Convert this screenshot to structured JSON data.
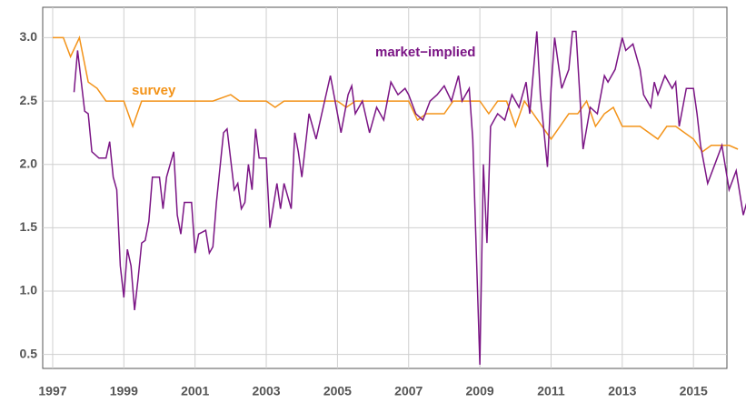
{
  "chart_data": {
    "type": "line",
    "xlim": [
      1996.72,
      2015.94
    ],
    "xticks": [
      1997,
      1999,
      2001,
      2003,
      2005,
      2007,
      2009,
      2011,
      2013,
      2015
    ],
    "ylim": [
      0.39,
      3.24
    ],
    "yticks": [
      {
        "value": 0.5,
        "label": "0.5"
      },
      {
        "value": 1.0,
        "label": "1.0"
      },
      {
        "value": 1.5,
        "label": "1.5"
      },
      {
        "value": 2.0,
        "label": "2.0"
      },
      {
        "value": 2.5,
        "label": "2.5"
      },
      {
        "value": 3.0,
        "label": "3.0"
      }
    ],
    "grid": true,
    "series": [
      {
        "name": "survey",
        "color": "#f39319",
        "x": [
          1997.0,
          1997.3,
          1997.5,
          1997.75,
          1998.0,
          1998.25,
          1998.5,
          1999.0,
          1999.25,
          1999.5,
          2001.5,
          2002.0,
          2002.25,
          2003.0,
          2003.25,
          2003.5,
          2005.0,
          2005.25,
          2005.5,
          2007.0,
          2007.25,
          2007.5,
          2008.0,
          2008.25,
          2009.0,
          2009.25,
          2009.5,
          2009.75,
          2010.0,
          2010.25,
          2010.5,
          2011.0,
          2011.5,
          2011.75,
          2012.0,
          2012.25,
          2012.5,
          2012.75,
          2013.0,
          2013.5,
          2014.0,
          2014.25,
          2014.5,
          2015.0,
          2015.25,
          2015.5,
          2015.75,
          2016.0,
          2016.25
        ],
        "values": [
          3.0,
          3.0,
          2.85,
          3.0,
          2.65,
          2.6,
          2.5,
          2.5,
          2.3,
          2.5,
          2.5,
          2.55,
          2.5,
          2.5,
          2.45,
          2.5,
          2.5,
          2.45,
          2.5,
          2.5,
          2.35,
          2.4,
          2.4,
          2.5,
          2.5,
          2.4,
          2.5,
          2.5,
          2.3,
          2.5,
          2.4,
          2.2,
          2.4,
          2.4,
          2.5,
          2.3,
          2.4,
          2.45,
          2.3,
          2.3,
          2.2,
          2.3,
          2.3,
          2.2,
          2.1,
          2.15,
          2.15,
          2.15,
          2.12
        ]
      },
      {
        "name": "market−implied",
        "color": "#7b1585",
        "x": [
          1997.6,
          1997.7,
          1997.9,
          1998.0,
          1998.1,
          1998.3,
          1998.5,
          1998.6,
          1998.7,
          1998.8,
          1998.9,
          1999.0,
          1999.1,
          1999.2,
          1999.3,
          1999.4,
          1999.5,
          1999.6,
          1999.7,
          1999.8,
          2000.0,
          2000.1,
          2000.2,
          2000.4,
          2000.5,
          2000.6,
          2000.7,
          2000.9,
          2001.0,
          2001.1,
          2001.3,
          2001.4,
          2001.5,
          2001.6,
          2001.8,
          2001.9,
          2002.1,
          2002.2,
          2002.3,
          2002.4,
          2002.5,
          2002.6,
          2002.7,
          2002.8,
          2003.0,
          2003.1,
          2003.3,
          2003.4,
          2003.5,
          2003.7,
          2003.8,
          2003.9,
          2004.0,
          2004.2,
          2004.4,
          2004.6,
          2004.8,
          2005.0,
          2005.1,
          2005.3,
          2005.4,
          2005.5,
          2005.7,
          2005.9,
          2006.1,
          2006.3,
          2006.5,
          2006.7,
          2006.9,
          2007.0,
          2007.2,
          2007.4,
          2007.6,
          2007.8,
          2008.0,
          2008.2,
          2008.4,
          2008.5,
          2008.7,
          2008.8,
          2009.0,
          2009.1,
          2009.2,
          2009.3,
          2009.5,
          2009.7,
          2009.9,
          2010.1,
          2010.3,
          2010.4,
          2010.6,
          2010.7,
          2010.9,
          2011.0,
          2011.1,
          2011.3,
          2011.5,
          2011.6,
          2011.7,
          2011.9,
          2012.1,
          2012.3,
          2012.5,
          2012.6,
          2012.8,
          2013.0,
          2013.1,
          2013.3,
          2013.5,
          2013.6,
          2013.8,
          2013.9,
          2014.0,
          2014.2,
          2014.4,
          2014.5,
          2014.6,
          2014.8,
          2015.0,
          2015.1,
          2015.2,
          2015.4,
          2015.6,
          2015.8,
          2016.0,
          2016.2,
          2016.4,
          2016.5
        ],
        "values": [
          2.57,
          2.9,
          2.42,
          2.4,
          2.1,
          2.05,
          2.05,
          2.18,
          1.9,
          1.8,
          1.2,
          0.95,
          1.33,
          1.2,
          0.85,
          1.1,
          1.38,
          1.4,
          1.55,
          1.9,
          1.9,
          1.65,
          1.9,
          2.1,
          1.6,
          1.45,
          1.7,
          1.7,
          1.3,
          1.45,
          1.48,
          1.3,
          1.35,
          1.7,
          2.25,
          2.28,
          1.8,
          1.85,
          1.65,
          1.7,
          2.0,
          1.8,
          2.28,
          2.05,
          2.05,
          1.5,
          1.85,
          1.65,
          1.85,
          1.65,
          2.25,
          2.1,
          1.9,
          2.4,
          2.2,
          2.45,
          2.7,
          2.4,
          2.25,
          2.55,
          2.62,
          2.4,
          2.5,
          2.25,
          2.45,
          2.35,
          2.65,
          2.55,
          2.6,
          2.55,
          2.4,
          2.35,
          2.5,
          2.55,
          2.62,
          2.5,
          2.7,
          2.5,
          2.6,
          2.2,
          0.42,
          2.0,
          1.38,
          2.3,
          2.4,
          2.35,
          2.55,
          2.45,
          2.65,
          2.4,
          3.05,
          2.55,
          1.98,
          2.6,
          3.0,
          2.6,
          2.75,
          3.05,
          3.05,
          2.12,
          2.45,
          2.4,
          2.7,
          2.65,
          2.75,
          3.0,
          2.9,
          2.95,
          2.75,
          2.55,
          2.45,
          2.65,
          2.55,
          2.7,
          2.6,
          2.65,
          2.3,
          2.6,
          2.6,
          2.4,
          2.15,
          1.85,
          2.0,
          2.15,
          1.8,
          1.95,
          1.6,
          1.7
        ]
      }
    ]
  }
}
